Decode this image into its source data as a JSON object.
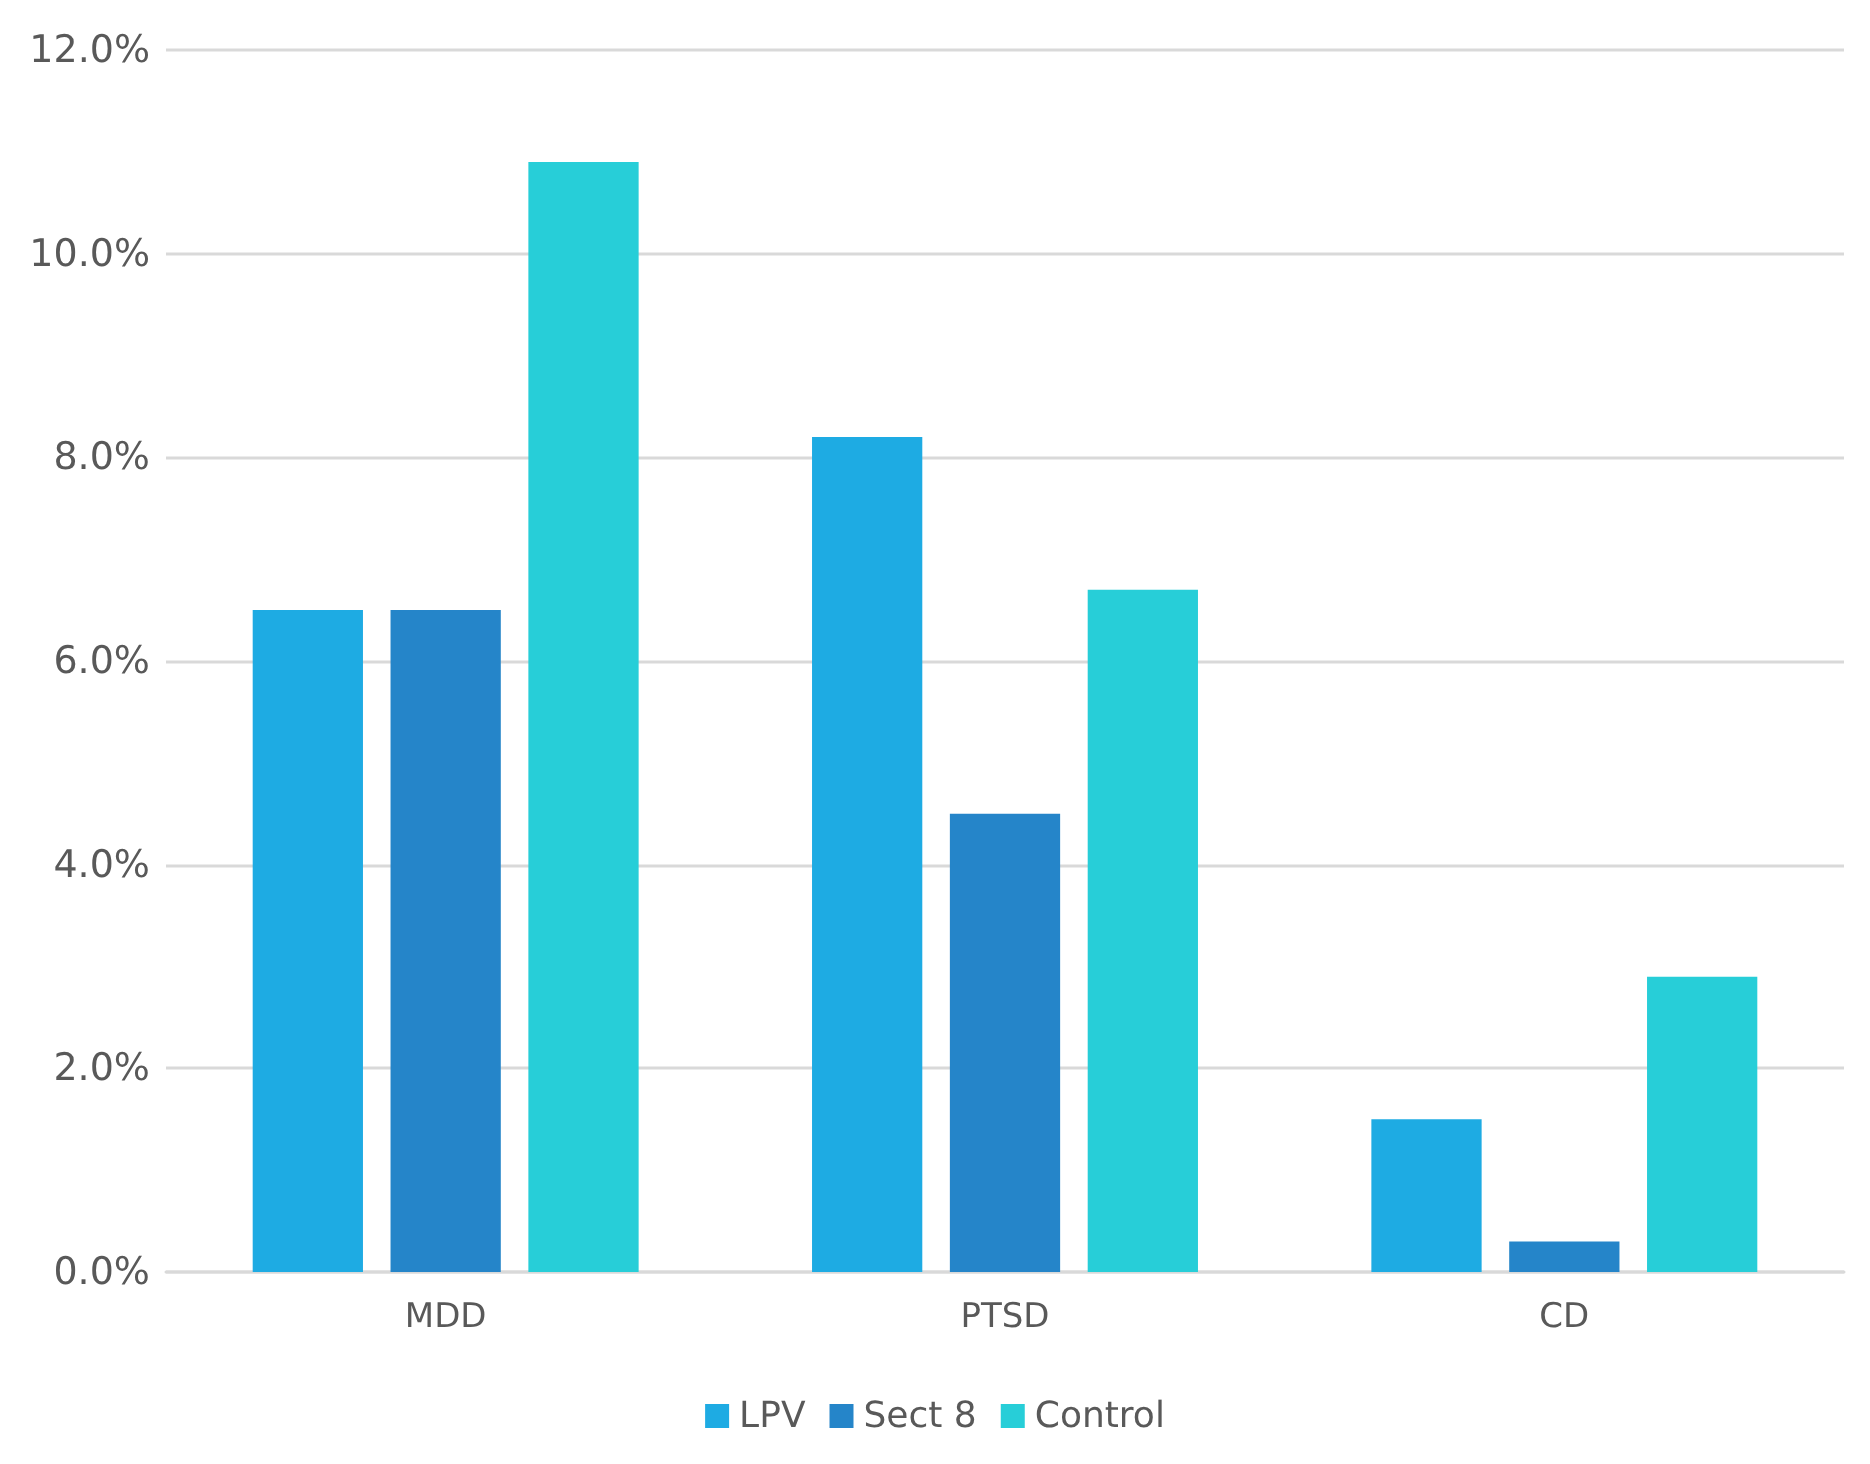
{
  "chart_data": {
    "type": "bar",
    "categories": [
      "MDD",
      "PTSD",
      "CD"
    ],
    "series": [
      {
        "name": "LPV",
        "color": "#1eabe3",
        "values": [
          6.5,
          8.2,
          1.5
        ]
      },
      {
        "name": "Sect 8",
        "color": "#2585c9",
        "values": [
          6.5,
          4.5,
          0.3
        ]
      },
      {
        "name": "Control",
        "color": "#27ced8",
        "values": [
          10.9,
          6.7,
          2.9
        ]
      }
    ],
    "ylim": [
      0,
      12
    ],
    "yticks": [
      {
        "value": 0,
        "label": "0.0%"
      },
      {
        "value": 2,
        "label": "2.0%"
      },
      {
        "value": 4,
        "label": "4.0%"
      },
      {
        "value": 6,
        "label": "6.0%"
      },
      {
        "value": 8,
        "label": "8.0%"
      },
      {
        "value": 10,
        "label": "10.0%"
      },
      {
        "value": 12,
        "label": "12.0%"
      }
    ],
    "grid": "y",
    "legend": "bottom"
  }
}
